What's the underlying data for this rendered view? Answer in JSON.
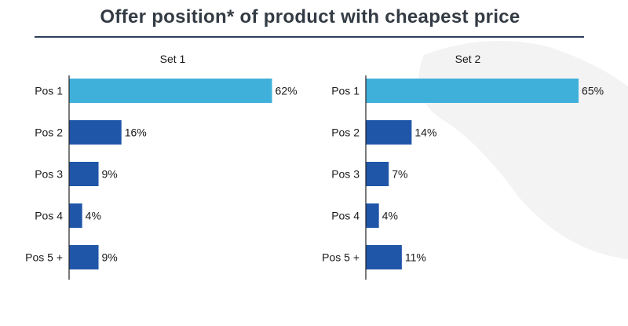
{
  "title": "Offer position* of product with cheapest price",
  "colors": {
    "highlight": "#3fb0da",
    "bar": "#1f56a8",
    "axis": "#222222",
    "rule": "#2f3f5c",
    "watermark": "#f3f3f3"
  },
  "chart_data": [
    {
      "type": "bar",
      "orientation": "horizontal",
      "title": "Set 1",
      "categories": [
        "Pos 1",
        "Pos 2",
        "Pos 3",
        "Pos 4",
        "Pos 5 +"
      ],
      "values": [
        62,
        16,
        9,
        4,
        9
      ],
      "labels": [
        "62%",
        "16%",
        "9%",
        "4%",
        "9%"
      ],
      "unit": "%",
      "highlight_index": 0,
      "xlim": [
        0,
        100
      ],
      "grid": false
    },
    {
      "type": "bar",
      "orientation": "horizontal",
      "title": "Set 2",
      "categories": [
        "Pos 1",
        "Pos 2",
        "Pos 3",
        "Pos 4",
        "Pos 5 +"
      ],
      "values": [
        65,
        14,
        7,
        4,
        11
      ],
      "labels": [
        "65%",
        "14%",
        "7%",
        "4%",
        "11%"
      ],
      "unit": "%",
      "highlight_index": 0,
      "xlim": [
        0,
        100
      ],
      "grid": false
    }
  ]
}
